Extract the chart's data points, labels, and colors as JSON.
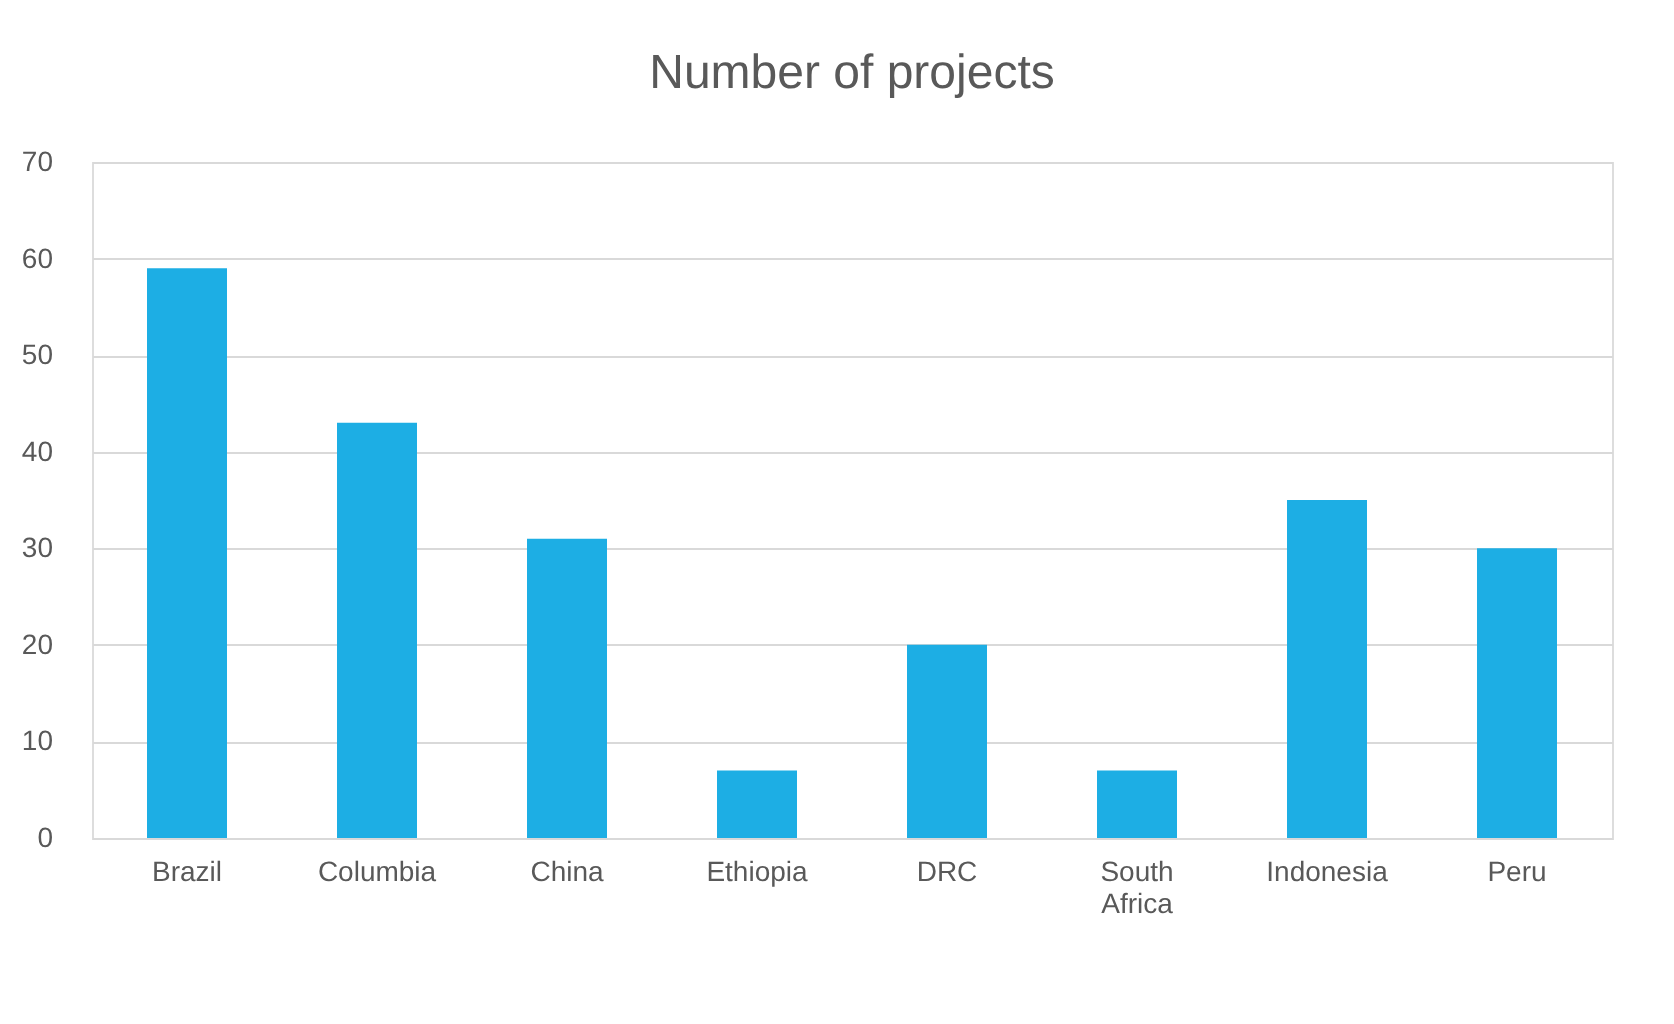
{
  "chart_data": {
    "type": "bar",
    "title": "Number of projects",
    "categories": [
      "Brazil",
      "Columbia",
      "China",
      "Ethiopia",
      "DRC",
      "South Africa",
      "Indonesia",
      "Peru"
    ],
    "values": [
      59,
      43,
      31,
      7,
      20,
      7,
      35,
      30
    ],
    "color": "#1daee4",
    "ylim": [
      0,
      70
    ],
    "yticks": [
      0,
      10,
      20,
      30,
      40,
      50,
      60,
      70
    ],
    "grid": "y"
  }
}
